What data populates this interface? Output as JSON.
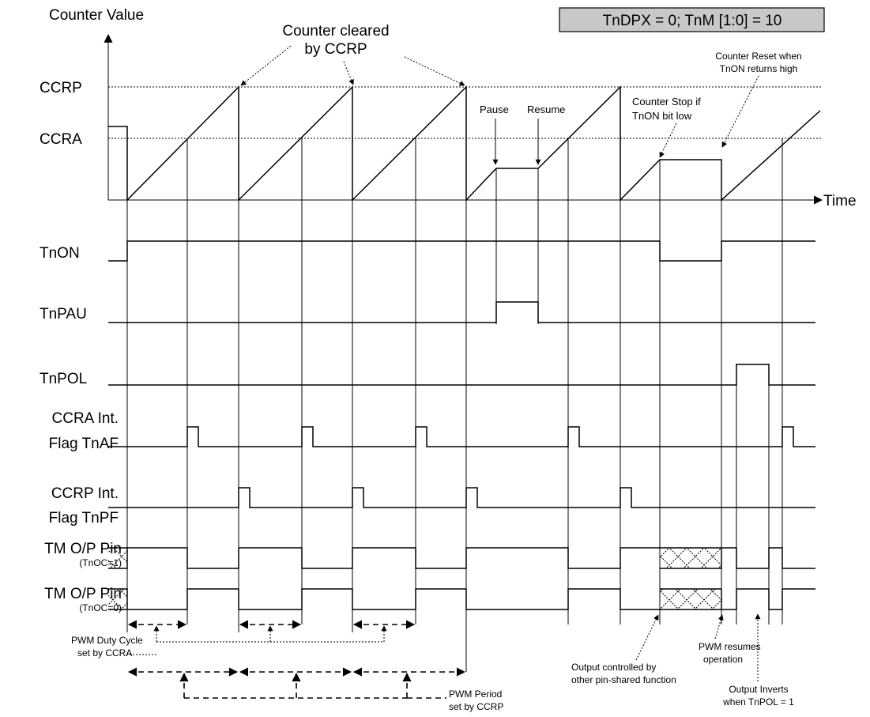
{
  "mode_box": "TnDPX = 0; TnM [1:0] = 10",
  "axis": {
    "y_label": "Counter Value",
    "x_label": "Time"
  },
  "counter_levels": {
    "ccrp": "CCRP",
    "ccra": "CCRA"
  },
  "signals": {
    "tnon": "TnON",
    "tnpau": "TnPAU",
    "tnpol": "TnPOL",
    "ccra_flag_line1": "CCRA Int.",
    "ccra_flag_line2": "Flag TnAF",
    "ccrp_flag_line1": "CCRP Int.",
    "ccrp_flag_line2": "Flag TnPF",
    "pin1": "TM O/P Pin",
    "pin1_sub": "(TnOC=1)",
    "pin0": "TM O/P Pin",
    "pin0_sub": "(TnOC=0)"
  },
  "annotations": {
    "cleared_line1": "Counter cleared",
    "cleared_line2": "by CCRP",
    "pause": "Pause",
    "resume": "Resume",
    "stop_line1": "Counter Stop if",
    "stop_line2": "TnON bit low",
    "reset_line1": "Counter Reset when",
    "reset_line2": "TnON returns high",
    "duty_line1": "PWM Duty Cycle",
    "duty_line2": "set by CCRA",
    "period_line1": "PWM Period",
    "period_line2": "set by CCRP",
    "output_ctrl_line1": "Output controlled by",
    "output_ctrl_line2": "other pin-shared function",
    "resumes_line1": "PWM resumes",
    "resumes_line2": "operation",
    "inverts_line1": "Output Inverts",
    "inverts_line2": "when TnPOL = 1"
  }
}
